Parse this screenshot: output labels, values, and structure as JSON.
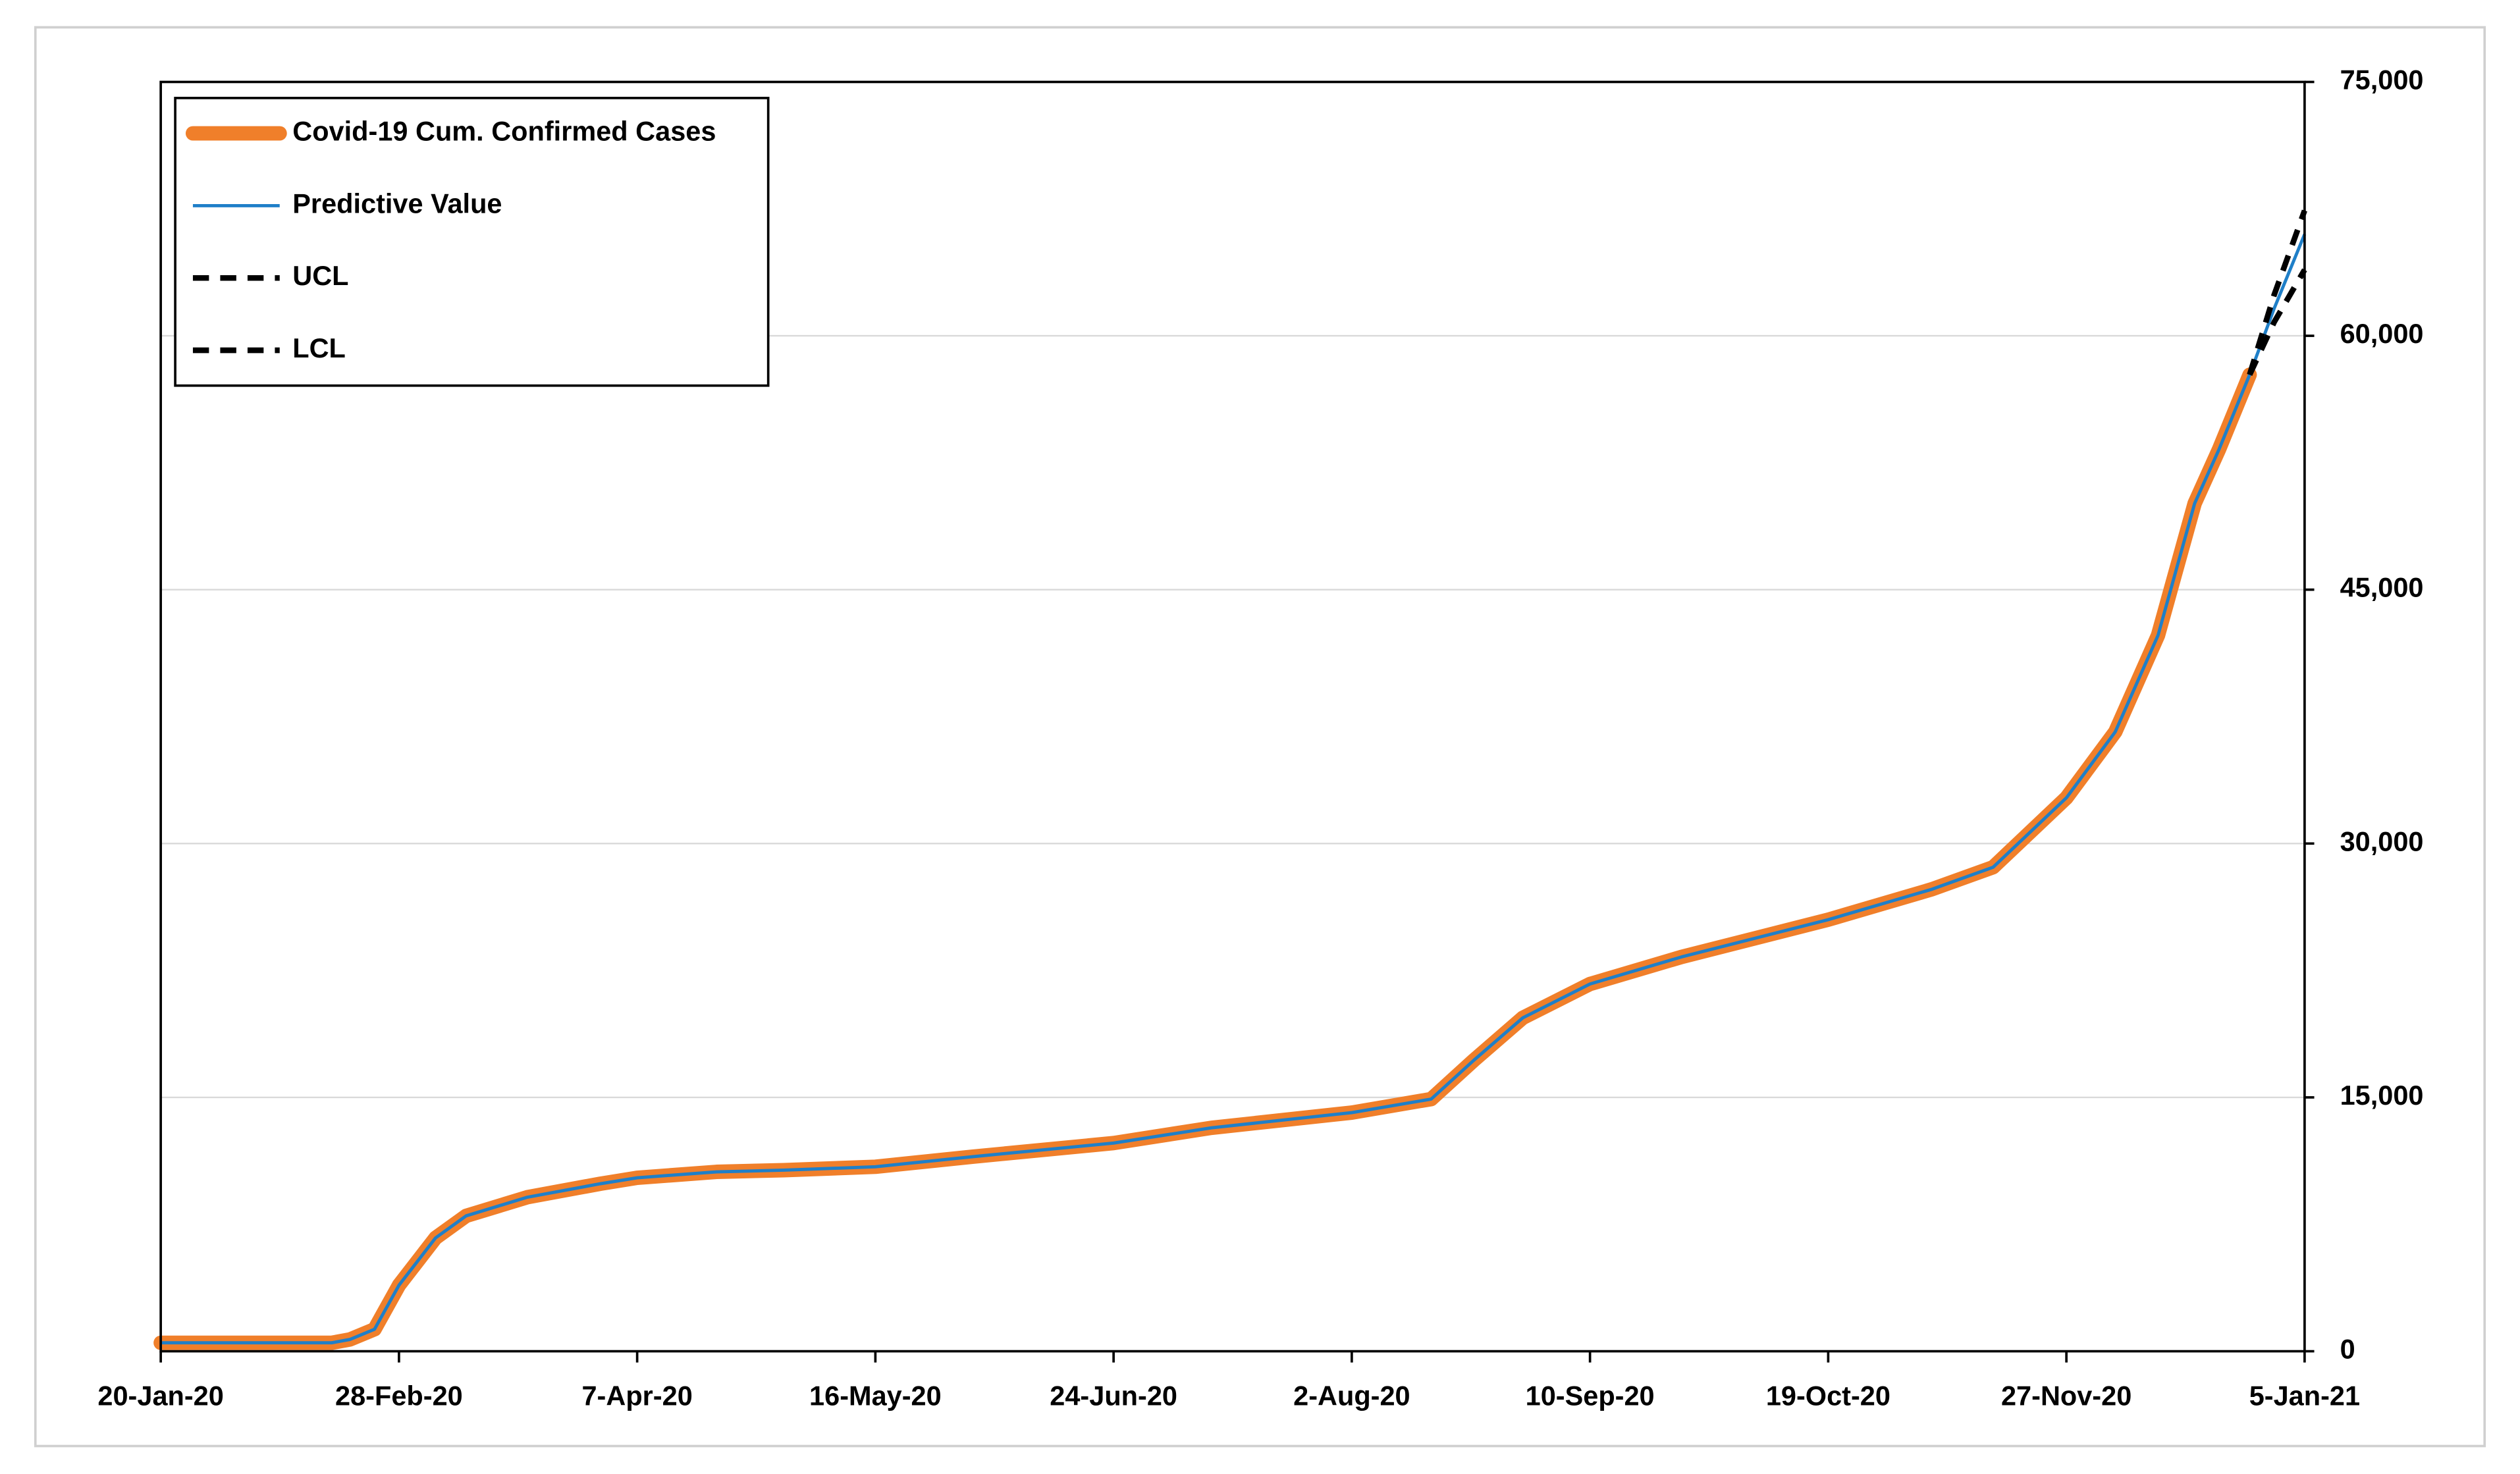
{
  "chart_data": {
    "type": "line",
    "x": [
      "2020-01-20",
      "2020-02-17",
      "2020-02-20",
      "2020-02-24",
      "2020-02-28",
      "2020-03-05",
      "2020-03-10",
      "2020-03-20",
      "2020-04-01",
      "2020-04-07",
      "2020-04-20",
      "2020-05-01",
      "2020-05-16",
      "2020-06-01",
      "2020-06-24",
      "2020-07-10",
      "2020-08-02",
      "2020-08-15",
      "2020-08-22",
      "2020-08-30",
      "2020-09-10",
      "2020-09-25",
      "2020-10-19",
      "2020-11-05",
      "2020-11-15",
      "2020-11-27",
      "2020-12-05",
      "2020-12-12",
      "2020-12-18",
      "2020-12-22",
      "2020-12-27",
      "2020-12-31",
      "2021-01-05"
    ],
    "series": [
      {
        "name": "Covid-19 Cum. Confirmed Cases",
        "color": "#f07f2a",
        "style": "thick",
        "values": [
          500,
          500,
          700,
          1300,
          3900,
          6700,
          8000,
          9100,
          9900,
          10250,
          10600,
          10700,
          10900,
          11500,
          12300,
          13200,
          14100,
          14900,
          17200,
          19700,
          21700,
          23300,
          25500,
          27300,
          28600,
          32700,
          36600,
          42300,
          50100,
          53300,
          57700,
          null,
          null
        ]
      },
      {
        "name": "Predictive Value",
        "color": "#1f7fc8",
        "style": "thin",
        "values": [
          500,
          500,
          700,
          1300,
          3900,
          6700,
          8000,
          9100,
          9900,
          10250,
          10600,
          10700,
          10900,
          11500,
          12300,
          13200,
          14100,
          14900,
          17200,
          19700,
          21700,
          23300,
          25500,
          27300,
          28600,
          32700,
          36600,
          42300,
          50100,
          53300,
          57700,
          61600,
          66000
        ]
      },
      {
        "name": "UCL",
        "color": "#000000",
        "style": "dashed",
        "values": [
          null,
          null,
          null,
          null,
          null,
          null,
          null,
          null,
          null,
          null,
          null,
          null,
          null,
          null,
          null,
          null,
          null,
          null,
          null,
          null,
          null,
          null,
          null,
          null,
          null,
          null,
          null,
          null,
          null,
          null,
          57700,
          62400,
          67400
        ]
      },
      {
        "name": "LCL",
        "color": "#000000",
        "style": "dashed",
        "values": [
          null,
          null,
          null,
          null,
          null,
          null,
          null,
          null,
          null,
          null,
          null,
          null,
          null,
          null,
          null,
          null,
          null,
          null,
          null,
          null,
          null,
          null,
          null,
          null,
          null,
          null,
          null,
          null,
          null,
          null,
          57700,
          60800,
          63900
        ]
      }
    ],
    "xlim": [
      "2020-01-20",
      "2021-01-05"
    ],
    "xticks": [
      {
        "value": "2020-01-20",
        "label": "20-Jan-20"
      },
      {
        "value": "2020-02-28",
        "label": "28-Feb-20"
      },
      {
        "value": "2020-04-07",
        "label": "7-Apr-20"
      },
      {
        "value": "2020-05-16",
        "label": "16-May-20"
      },
      {
        "value": "2020-06-24",
        "label": "24-Jun-20"
      },
      {
        "value": "2020-08-02",
        "label": "2-Aug-20"
      },
      {
        "value": "2020-09-10",
        "label": "10-Sep-20"
      },
      {
        "value": "2020-10-19",
        "label": "19-Oct-20"
      },
      {
        "value": "2020-11-27",
        "label": "27-Nov-20"
      },
      {
        "value": "2021-01-05",
        "label": "5-Jan-21"
      }
    ],
    "ylim": [
      0,
      75000
    ],
    "yticks": [
      0,
      {
        "value": 15000,
        "label": "15,000"
      },
      {
        "value": 30000,
        "label": "30,000"
      },
      {
        "value": 45000,
        "label": "45,000"
      },
      {
        "value": 60000,
        "label": "60,000"
      },
      {
        "value": 75000,
        "label": "75,000"
      }
    ],
    "y_axis_side": "right",
    "grid": true,
    "legend": "top-left"
  }
}
